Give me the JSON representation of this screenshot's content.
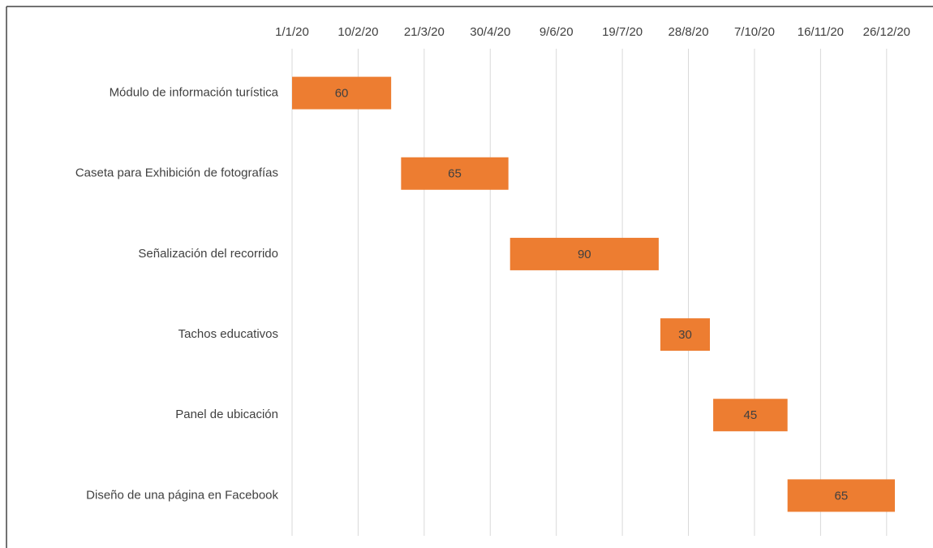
{
  "chart_data": {
    "type": "gantt",
    "categories": [
      "Módulo de información turística",
      "Caseta para Exhibición de fotografías",
      "Señalización del recorrido",
      "Tachos educativos",
      "Panel de ubicación",
      "Diseño de una página en Facebook"
    ],
    "starts": [
      0,
      66,
      132,
      223,
      255,
      300
    ],
    "values": [
      60,
      65,
      90,
      30,
      45,
      65
    ],
    "color": "#ed7d31",
    "xlim": [
      0,
      365
    ],
    "xticks": [
      {
        "value": 0,
        "label": "1/1/20"
      },
      {
        "value": 40,
        "label": "10/2/20"
      },
      {
        "value": 80,
        "label": "21/3/20"
      },
      {
        "value": 120,
        "label": "30/4/20"
      },
      {
        "value": 160,
        "label": "9/6/20"
      },
      {
        "value": 200,
        "label": "19/7/20"
      },
      {
        "value": 240,
        "label": "28/8/20"
      },
      {
        "value": 280,
        "label": "7/10/20"
      },
      {
        "value": 320,
        "label": "16/11/20"
      },
      {
        "value": 360,
        "label": "26/12/20"
      }
    ],
    "grid": true
  }
}
